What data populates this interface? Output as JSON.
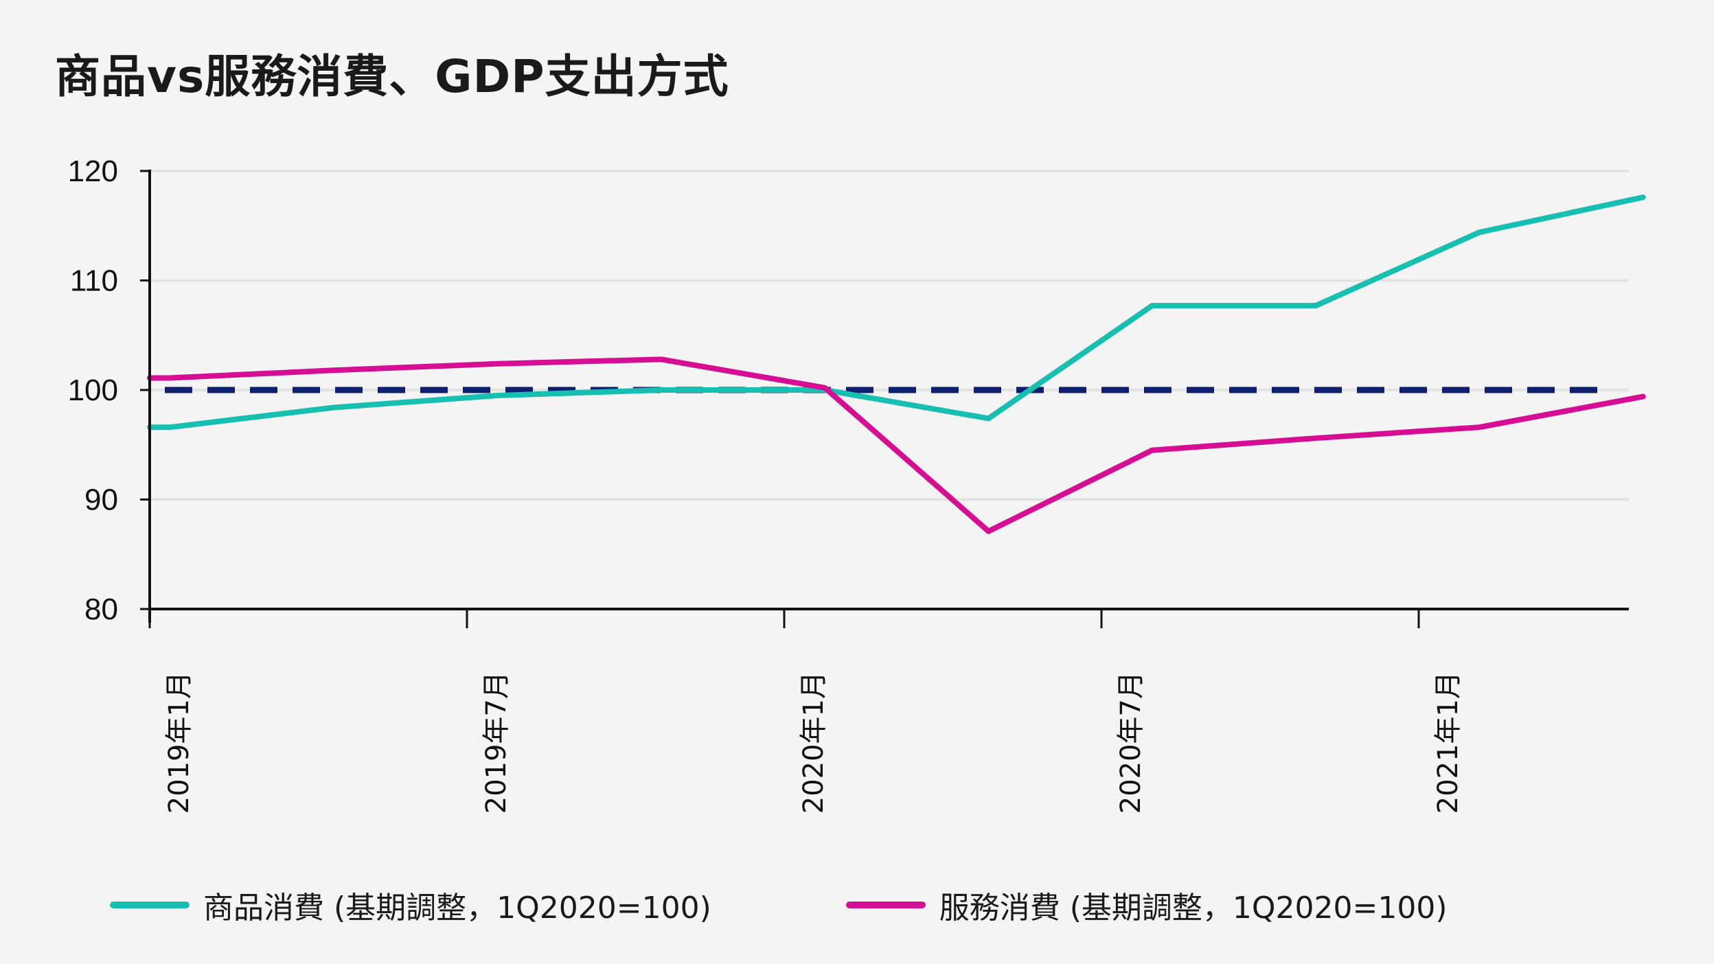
{
  "title": "商品vs服務消費、GDP支出方式",
  "chart_data": {
    "type": "line",
    "title": "商品vs服務消費、GDP支出方式",
    "xlabel": "",
    "ylabel": "",
    "ylim": [
      80,
      120
    ],
    "yticks": [
      80,
      90,
      100,
      110,
      120
    ],
    "xticks": [
      "2019年1月",
      "2019年7月",
      "2020年1月",
      "2020年7月",
      "2021年1月"
    ],
    "x": [
      "2019年1月",
      "2019年4月",
      "2019年7月",
      "2019年10月",
      "2020年1月",
      "2020年4月",
      "2020年7月",
      "2020年10月",
      "2021年1月",
      "2021年4月"
    ],
    "series": [
      {
        "name": "商品消費 (基期調整，1Q2020=100)",
        "color": "#17bfb0",
        "values": [
          96.6,
          98.4,
          99.5,
          100.0,
          100.0,
          97.4,
          107.7,
          107.7,
          114.4,
          117.6
        ]
      },
      {
        "name": "服務消費 (基期調整，1Q2020=100)",
        "color": "#d60e93",
        "values": [
          101.1,
          101.8,
          102.4,
          102.8,
          100.2,
          87.1,
          94.5,
          95.6,
          96.6,
          99.4
        ]
      }
    ],
    "reference_line": {
      "y": 100,
      "style": "dashed",
      "color": "#0d1f6e"
    },
    "grid": "horizontal",
    "legend_position": "bottom"
  }
}
